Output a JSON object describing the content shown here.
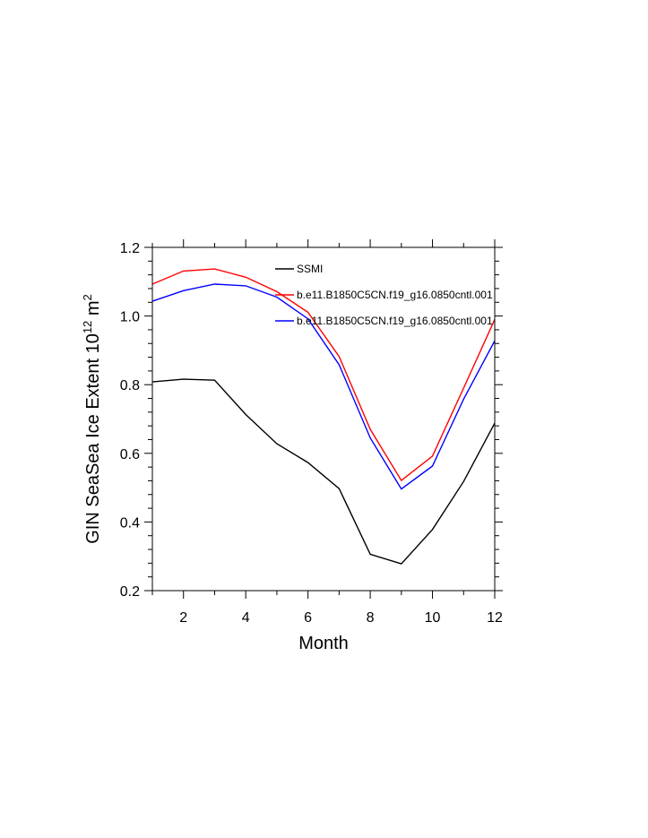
{
  "chart_data": {
    "type": "line",
    "title": "",
    "xlabel": "Month",
    "ylabel": {
      "text": "GIN SeaSea Ice Extent 10",
      "superscript": "12",
      "unit": " m",
      "unit_superscript": "2"
    },
    "xlim": [
      1,
      12
    ],
    "ylim": [
      0.2,
      1.2
    ],
    "x_ticks": [
      2,
      4,
      6,
      8,
      10,
      12
    ],
    "x_tick_labels": [
      "2",
      "4",
      "6",
      "8",
      "10",
      "12"
    ],
    "y_ticks": [
      0.2,
      0.4,
      0.6,
      0.8,
      1.0,
      1.2
    ],
    "y_tick_labels": [
      "0.2",
      "0.4",
      "0.6",
      "0.8",
      "1.0",
      "1.2"
    ],
    "grid": false,
    "legend_position": "top-right",
    "x": [
      1,
      2,
      3,
      4,
      5,
      6,
      7,
      8,
      9,
      10,
      11,
      12
    ],
    "series": [
      {
        "name": "SSMI",
        "color": "#000000",
        "values": [
          0.808,
          0.816,
          0.813,
          0.713,
          0.628,
          0.573,
          0.497,
          0.306,
          0.278,
          0.378,
          0.518,
          0.688
        ]
      },
      {
        "name": "b.e11.B1850C5CN.f19_g16.0850cntl.001",
        "color": "#ff0000",
        "values": [
          1.093,
          1.131,
          1.137,
          1.113,
          1.071,
          1.011,
          0.882,
          0.67,
          0.521,
          0.592,
          0.79,
          0.99
        ]
      },
      {
        "name": "b.e11.B1850C5CN.f19_g16.0850cntl.001",
        "color": "#0000ff",
        "values": [
          1.043,
          1.074,
          1.093,
          1.088,
          1.055,
          0.992,
          0.858,
          0.645,
          0.496,
          0.563,
          0.758,
          0.928
        ]
      }
    ]
  }
}
